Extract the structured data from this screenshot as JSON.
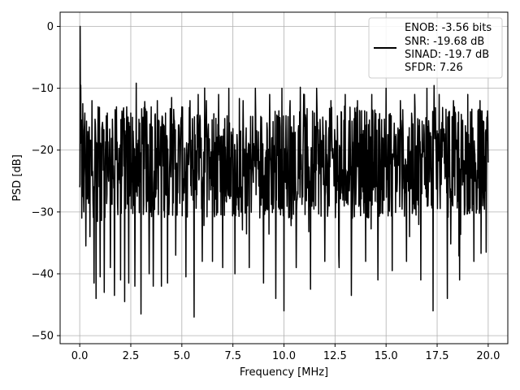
{
  "chart_data": {
    "type": "line",
    "title": "",
    "xlabel": "Frequency [MHz]",
    "ylabel": "PSD [dB]",
    "xlim": [
      -0.96,
      20.96
    ],
    "ylim": [
      -51.3,
      2.3
    ],
    "x_ticks": [
      0.0,
      2.5,
      5.0,
      7.5,
      10.0,
      12.5,
      15.0,
      17.5,
      20.0
    ],
    "x_tick_labels": [
      "0.0",
      "2.5",
      "5.0",
      "7.5",
      "10.0",
      "12.5",
      "15.0",
      "17.5",
      "20.0"
    ],
    "y_ticks": [
      0,
      -10,
      -20,
      -30,
      -40,
      -50
    ],
    "y_tick_labels": [
      "0",
      "−10",
      "−20",
      "−30",
      "−40",
      "−50"
    ],
    "grid": true,
    "legend_position": "top-right",
    "legend_lines": [
      "ENOB: -3.56 bits",
      "SNR: -19.68 dB",
      "SINAD: -19.7 dB",
      "SFDR: 7.26"
    ],
    "series": [
      {
        "color": "#000000",
        "sampled_x": [
          0.0,
          0.02,
          0.05,
          0.1,
          0.15,
          0.2,
          0.25,
          0.3,
          0.4,
          0.5,
          0.6,
          0.7,
          0.75,
          0.8,
          0.9,
          1.0,
          1.1,
          1.2,
          1.35,
          1.5,
          1.6,
          1.7,
          1.8,
          2.0,
          2.1,
          2.2,
          2.3,
          2.4,
          2.5,
          2.7,
          2.9,
          3.0,
          3.2,
          3.4,
          3.5,
          3.6,
          3.8,
          4.0,
          4.2,
          4.3,
          4.5,
          4.7,
          5.0,
          5.2,
          5.4,
          5.6,
          5.8,
          6.0,
          6.2,
          6.5,
          6.8,
          7.0,
          7.3,
          7.6,
          8.0,
          8.3,
          8.6,
          9.0,
          9.3,
          9.6,
          9.9,
          10.0,
          10.3,
          10.6,
          11.0,
          11.3,
          11.6,
          12.0,
          12.3,
          12.7,
          13.0,
          13.3,
          13.6,
          14.0,
          14.3,
          14.6,
          15.0,
          15.3,
          15.7,
          16.0,
          16.4,
          16.7,
          17.0,
          17.3,
          17.6,
          18.0,
          18.3,
          18.6,
          19.0,
          19.3,
          19.6,
          19.9,
          20.0
        ],
        "sampled_y": [
          -26,
          0,
          -9.5,
          -31,
          -12.5,
          -30,
          -14,
          -35.5,
          -17,
          -34,
          -12,
          -41.5,
          -15,
          -44,
          -13,
          -40.5,
          -16,
          -43,
          -14,
          -39,
          -15,
          -43.5,
          -13,
          -41,
          -15,
          -44.5,
          -13,
          -41.5,
          -14,
          -42,
          -15,
          -46.5,
          -14,
          -40,
          -13,
          -42,
          -12,
          -42,
          -14,
          -41.5,
          -11.5,
          -37,
          -13,
          -40.5,
          -12,
          -47,
          -11,
          -38,
          -12,
          -38,
          -11,
          -39,
          -10,
          -40,
          -12,
          -39,
          -10,
          -41.5,
          -11,
          -44,
          -10,
          -46,
          -12,
          -39,
          -11,
          -42.5,
          -10,
          -38,
          -12,
          -39,
          -11,
          -43.5,
          -12,
          -38,
          -11,
          -41,
          -10,
          -39.5,
          -12,
          -38,
          -11,
          -41,
          -10,
          -46,
          -11,
          -44,
          -12,
          -41,
          -11,
          -38,
          -12,
          -36.5,
          -22
        ]
      }
    ]
  }
}
